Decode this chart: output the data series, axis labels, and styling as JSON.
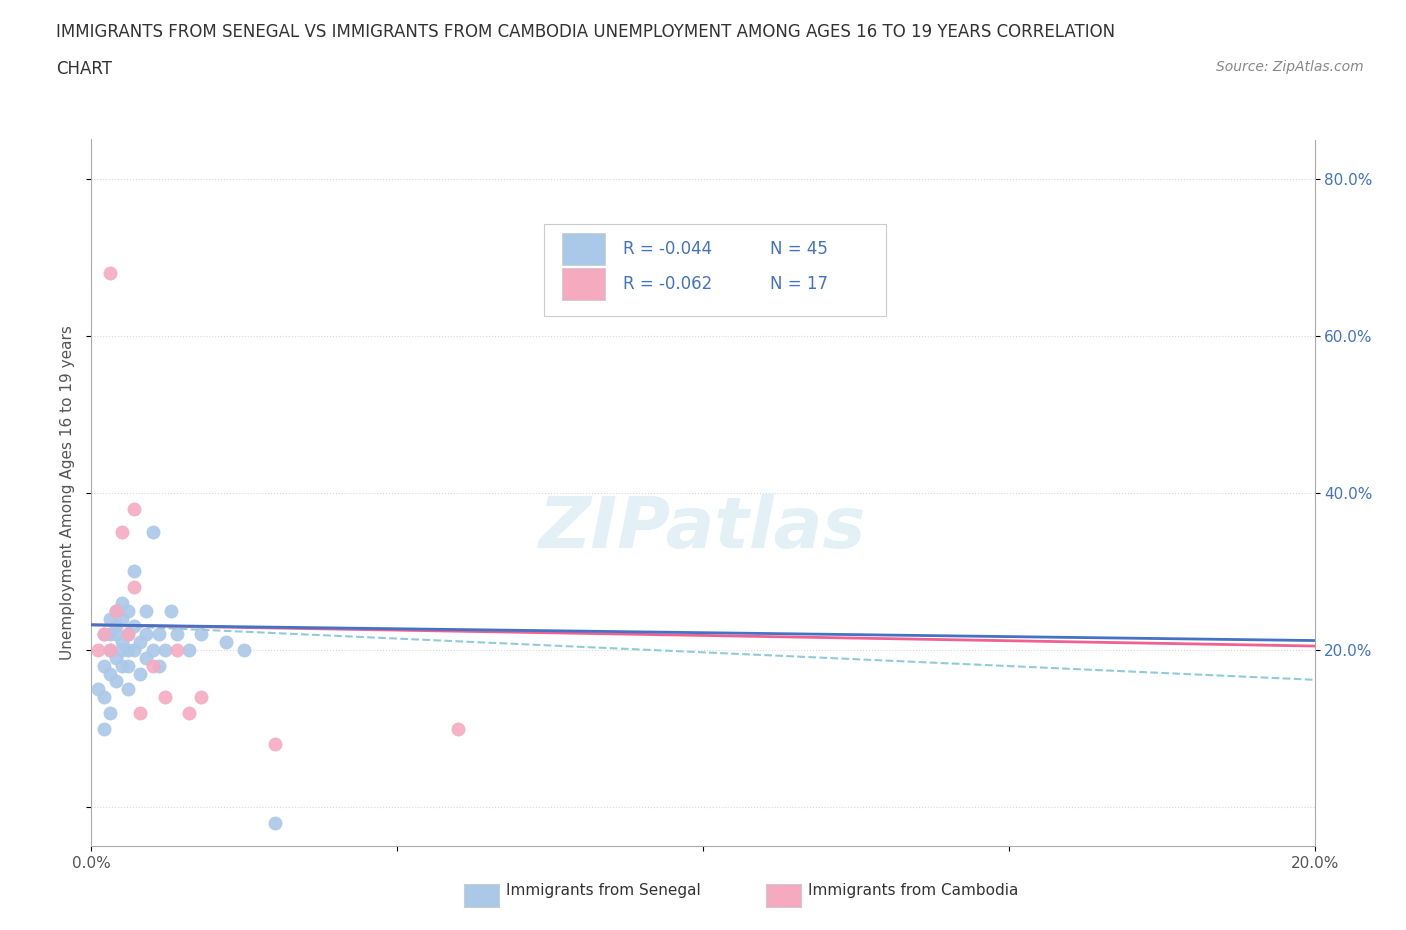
{
  "title_line1": "IMMIGRANTS FROM SENEGAL VS IMMIGRANTS FROM CAMBODIA UNEMPLOYMENT AMONG AGES 16 TO 19 YEARS CORRELATION",
  "title_line2": "CHART",
  "source": "Source: ZipAtlas.com",
  "ylabel": "Unemployment Among Ages 16 to 19 years",
  "xlim": [
    0.0,
    0.2
  ],
  "ylim": [
    -0.05,
    0.85
  ],
  "senegal_color": "#aac8e8",
  "cambodia_color": "#f5aac0",
  "senegal_line_color": "#4472c4",
  "cambodia_line_color": "#f06090",
  "dashed_line_color": "#90ccd8",
  "legend_color_text": "#4472c4",
  "grid_color": "#d8d8d8",
  "senegal_x": [
    0.001,
    0.002,
    0.002,
    0.002,
    0.002,
    0.003,
    0.003,
    0.003,
    0.003,
    0.003,
    0.004,
    0.004,
    0.004,
    0.004,
    0.004,
    0.005,
    0.005,
    0.005,
    0.005,
    0.005,
    0.006,
    0.006,
    0.006,
    0.006,
    0.006,
    0.007,
    0.007,
    0.007,
    0.008,
    0.008,
    0.009,
    0.009,
    0.009,
    0.01,
    0.01,
    0.011,
    0.011,
    0.012,
    0.013,
    0.014,
    0.016,
    0.018,
    0.022,
    0.025,
    0.03
  ],
  "senegal_y": [
    0.15,
    0.18,
    0.22,
    0.14,
    0.1,
    0.2,
    0.24,
    0.17,
    0.12,
    0.22,
    0.25,
    0.22,
    0.19,
    0.23,
    0.16,
    0.21,
    0.24,
    0.26,
    0.2,
    0.18,
    0.22,
    0.25,
    0.18,
    0.15,
    0.2,
    0.3,
    0.2,
    0.23,
    0.17,
    0.21,
    0.22,
    0.25,
    0.19,
    0.35,
    0.2,
    0.22,
    0.18,
    0.2,
    0.25,
    0.22,
    0.2,
    0.22,
    0.21,
    0.2,
    -0.02
  ],
  "cambodia_x": [
    0.001,
    0.002,
    0.003,
    0.004,
    0.005,
    0.006,
    0.007,
    0.008,
    0.01,
    0.012,
    0.014,
    0.016,
    0.018,
    0.03,
    0.06,
    0.003,
    0.007
  ],
  "cambodia_y": [
    0.2,
    0.22,
    0.68,
    0.25,
    0.35,
    0.22,
    0.28,
    0.12,
    0.18,
    0.14,
    0.2,
    0.12,
    0.14,
    0.08,
    0.1,
    0.2,
    0.38
  ],
  "senegal_trend_x": [
    0.0,
    0.2
  ],
  "senegal_trend_y": [
    0.232,
    0.212
  ],
  "cambodia_trend_x": [
    0.0,
    0.2
  ],
  "cambodia_trend_y": [
    0.232,
    0.205
  ],
  "dashed_trend_x": [
    0.0,
    0.2
  ],
  "dashed_trend_y": [
    0.232,
    0.162
  ],
  "legend_R_senegal": "-0.044",
  "legend_N_senegal": "45",
  "legend_R_cambodia": "-0.062",
  "legend_N_cambodia": "17"
}
